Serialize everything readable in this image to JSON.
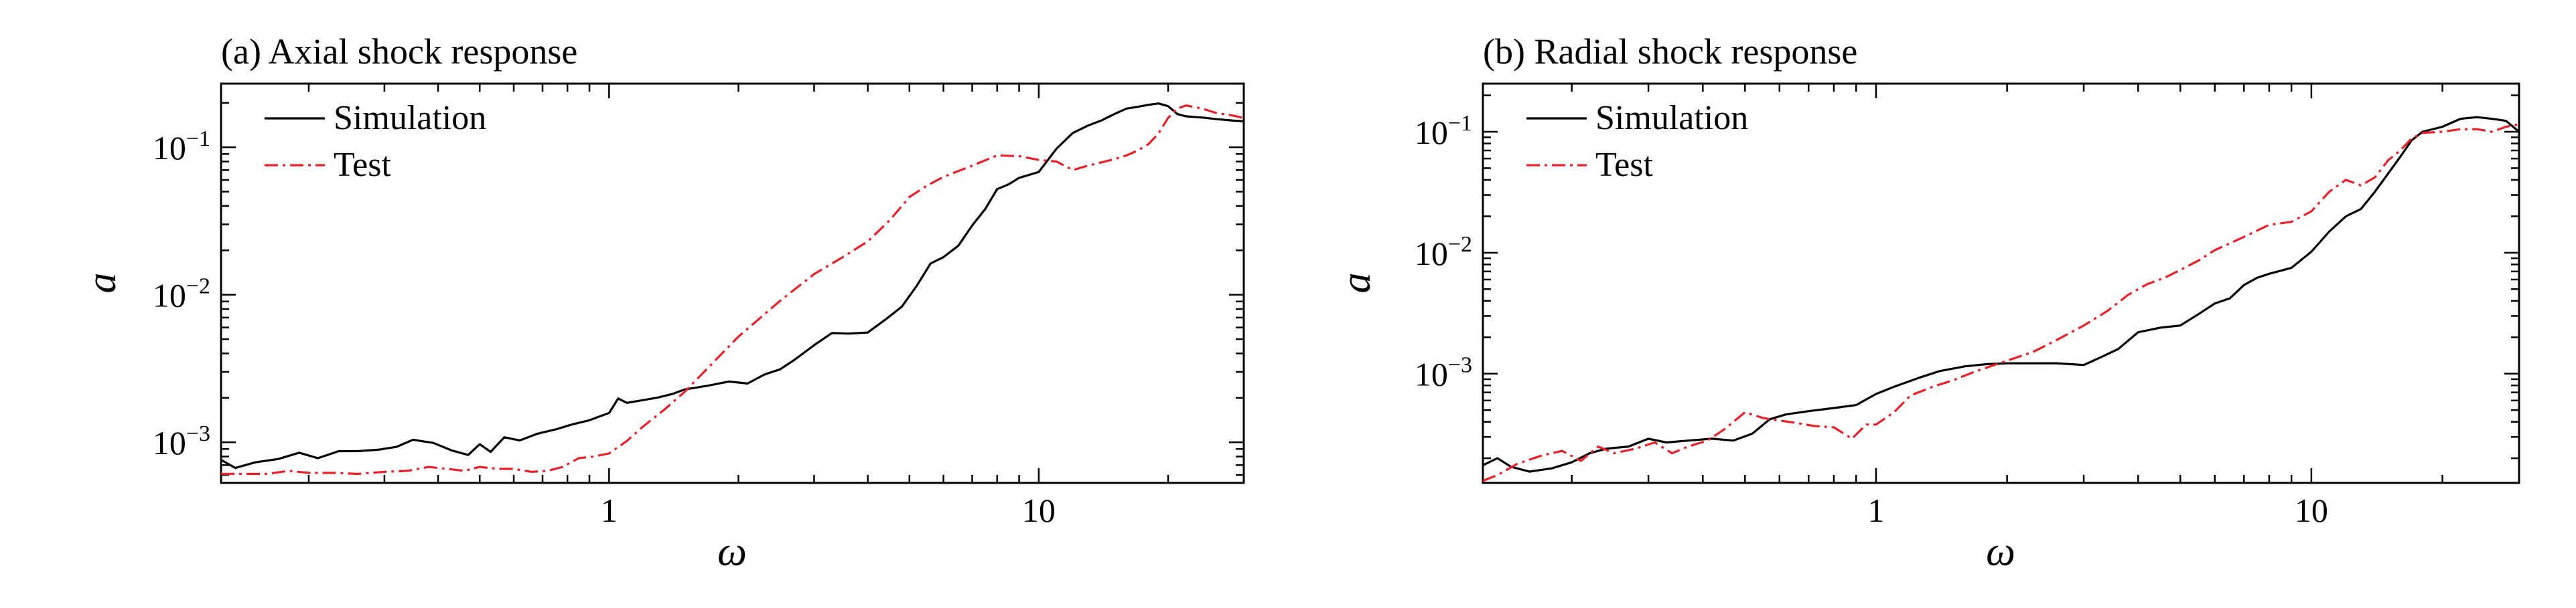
{
  "chart_data": [
    {
      "type": "line",
      "title": "(a) Axial shock response",
      "xlabel": "ω",
      "ylabel": "a",
      "xscale": "log",
      "yscale": "log",
      "xlim": [
        0.125,
        30
      ],
      "ylim": [
        0.00053,
        0.27
      ],
      "x_ticks": [
        {
          "value": 1,
          "label": "1"
        },
        {
          "value": 10,
          "label": "10"
        }
      ],
      "y_ticks": [
        {
          "value": 0.001,
          "base": "10",
          "exp": "−3"
        },
        {
          "value": 0.01,
          "base": "10",
          "exp": "−2"
        },
        {
          "value": 0.1,
          "base": "10",
          "exp": "−1"
        }
      ],
      "legend_position": "top-left",
      "series": [
        {
          "name": "Simulation",
          "color": "#000000",
          "dash": "solid",
          "x": [
            0.125,
            0.135,
            0.15,
            0.17,
            0.19,
            0.21,
            0.235,
            0.26,
            0.29,
            0.32,
            0.35,
            0.39,
            0.43,
            0.47,
            0.5,
            0.53,
            0.57,
            0.62,
            0.68,
            0.75,
            0.82,
            0.9,
            1.0,
            1.05,
            1.1,
            1.2,
            1.3,
            1.4,
            1.5,
            1.7,
            1.9,
            2.1,
            2.3,
            2.5,
            2.7,
            3.0,
            3.3,
            3.6,
            4.0,
            4.4,
            4.8,
            5.2,
            5.6,
            6.0,
            6.5,
            7.0,
            7.5,
            8.0,
            8.5,
            9.0,
            10,
            11,
            12,
            13,
            14,
            15,
            16,
            17,
            18,
            19,
            20,
            21,
            22,
            24,
            26,
            28,
            30
          ],
          "values": [
            0.00076,
            0.00067,
            0.00073,
            0.00077,
            0.00085,
            0.00078,
            0.00087,
            0.00087,
            0.00089,
            0.00093,
            0.00104,
            0.00099,
            0.00088,
            0.00082,
            0.00097,
            0.00086,
            0.00108,
            0.00103,
            0.00114,
            0.00122,
            0.00132,
            0.00141,
            0.00158,
            0.00198,
            0.00185,
            0.00193,
            0.00201,
            0.00212,
            0.00228,
            0.00242,
            0.00258,
            0.0025,
            0.00288,
            0.00312,
            0.00362,
            0.00455,
            0.0055,
            0.00545,
            0.00555,
            0.0068,
            0.0083,
            0.0115,
            0.0163,
            0.018,
            0.0215,
            0.0295,
            0.038,
            0.052,
            0.056,
            0.062,
            0.068,
            0.098,
            0.125,
            0.14,
            0.152,
            0.168,
            0.183,
            0.188,
            0.194,
            0.198,
            0.19,
            0.168,
            0.162,
            0.159,
            0.155,
            0.152,
            0.15
          ]
        },
        {
          "name": "Test",
          "color": "#e8202a",
          "dash": "dashdot",
          "x": [
            0.125,
            0.14,
            0.16,
            0.18,
            0.2,
            0.23,
            0.26,
            0.3,
            0.34,
            0.38,
            0.42,
            0.46,
            0.5,
            0.55,
            0.6,
            0.66,
            0.72,
            0.78,
            0.85,
            0.92,
            1.0,
            1.1,
            1.2,
            1.35,
            1.5,
            1.7,
            2.0,
            2.5,
            3.0,
            3.5,
            4.0,
            4.5,
            5.0,
            5.5,
            6.0,
            7.0,
            8.0,
            9.0,
            10,
            11,
            12,
            13,
            14,
            15,
            16,
            17,
            18,
            19,
            20,
            21,
            22,
            24,
            26,
            28,
            30
          ],
          "values": [
            0.00061,
            0.00061,
            0.00061,
            0.00064,
            0.00062,
            0.00062,
            0.00061,
            0.00063,
            0.00064,
            0.00068,
            0.00066,
            0.00064,
            0.00068,
            0.00066,
            0.00066,
            0.00063,
            0.00064,
            0.00068,
            0.00078,
            0.0008,
            0.00084,
            0.00102,
            0.00128,
            0.00168,
            0.0022,
            0.0032,
            0.0052,
            0.0091,
            0.0138,
            0.018,
            0.023,
            0.032,
            0.046,
            0.055,
            0.063,
            0.075,
            0.088,
            0.087,
            0.082,
            0.08,
            0.07,
            0.075,
            0.079,
            0.083,
            0.088,
            0.095,
            0.105,
            0.124,
            0.158,
            0.183,
            0.192,
            0.183,
            0.17,
            0.165,
            0.158
          ]
        }
      ]
    },
    {
      "type": "line",
      "title": "(b) Radial shock response",
      "xlabel": "ω",
      "ylabel": "a",
      "xscale": "log",
      "yscale": "log",
      "xlim": [
        0.125,
        30
      ],
      "ylim": [
        0.000125,
        0.25
      ],
      "x_ticks": [
        {
          "value": 1,
          "label": "1"
        },
        {
          "value": 10,
          "label": "10"
        }
      ],
      "y_ticks": [
        {
          "value": 0.001,
          "base": "10",
          "exp": "−3"
        },
        {
          "value": 0.01,
          "base": "10",
          "exp": "−2"
        },
        {
          "value": 0.1,
          "base": "10",
          "exp": "−1"
        }
      ],
      "legend_position": "top-left",
      "series": [
        {
          "name": "Simulation",
          "color": "#000000",
          "dash": "solid",
          "x": [
            0.125,
            0.135,
            0.145,
            0.16,
            0.18,
            0.2,
            0.22,
            0.24,
            0.27,
            0.3,
            0.33,
            0.37,
            0.42,
            0.47,
            0.52,
            0.57,
            0.62,
            0.7,
            0.8,
            0.9,
            1.0,
            1.1,
            1.25,
            1.4,
            1.6,
            1.8,
            2.0,
            2.3,
            2.6,
            3.0,
            3.3,
            3.6,
            4.0,
            4.5,
            5.0,
            5.5,
            6.0,
            6.5,
            7.0,
            7.5,
            8.0,
            9.0,
            10,
            11,
            12,
            13,
            14,
            15,
            16,
            17,
            18,
            20,
            22,
            24,
            26,
            28,
            30
          ],
          "values": [
            0.000175,
            0.0002,
            0.00017,
            0.000155,
            0.000165,
            0.000185,
            0.00022,
            0.00024,
            0.00025,
            0.00029,
            0.00027,
            0.00028,
            0.00029,
            0.00028,
            0.00032,
            0.00042,
            0.00046,
            0.00049,
            0.00052,
            0.00055,
            0.00068,
            0.00078,
            0.00092,
            0.00105,
            0.00115,
            0.0012,
            0.00122,
            0.00122,
            0.00122,
            0.00118,
            0.00138,
            0.0016,
            0.0022,
            0.0024,
            0.0025,
            0.0031,
            0.0038,
            0.0042,
            0.0054,
            0.0062,
            0.0067,
            0.0075,
            0.0102,
            0.015,
            0.02,
            0.023,
            0.032,
            0.045,
            0.062,
            0.085,
            0.1,
            0.11,
            0.128,
            0.132,
            0.128,
            0.123,
            0.1
          ]
        },
        {
          "name": "Test",
          "color": "#e8202a",
          "dash": "dashdot",
          "x": [
            0.125,
            0.135,
            0.15,
            0.17,
            0.19,
            0.21,
            0.23,
            0.25,
            0.28,
            0.31,
            0.34,
            0.37,
            0.41,
            0.45,
            0.5,
            0.55,
            0.6,
            0.66,
            0.72,
            0.8,
            0.88,
            0.95,
            1.0,
            1.1,
            1.2,
            1.35,
            1.5,
            1.7,
            2.0,
            2.3,
            2.6,
            3.0,
            3.4,
            3.8,
            4.2,
            4.6,
            5.0,
            5.5,
            6.0,
            7.0,
            8.0,
            9.0,
            10,
            11,
            12,
            13,
            14,
            15,
            16,
            17,
            18,
            20,
            22,
            24,
            26,
            28,
            30
          ],
          "values": [
            0.00013,
            0.000145,
            0.00018,
            0.00021,
            0.00023,
            0.00019,
            0.00025,
            0.00022,
            0.00024,
            0.00027,
            0.00022,
            0.00025,
            0.00028,
            0.00035,
            0.00048,
            0.00043,
            0.00041,
            0.00039,
            0.00037,
            0.00036,
            0.00029,
            0.00038,
            0.00038,
            0.00048,
            0.00066,
            0.00078,
            0.00088,
            0.00105,
            0.00128,
            0.00152,
            0.0019,
            0.0025,
            0.0033,
            0.0045,
            0.0055,
            0.0062,
            0.0072,
            0.0086,
            0.0105,
            0.0135,
            0.017,
            0.018,
            0.022,
            0.032,
            0.04,
            0.036,
            0.042,
            0.058,
            0.07,
            0.088,
            0.098,
            0.1,
            0.105,
            0.105,
            0.1,
            0.11,
            0.115
          ]
        }
      ]
    }
  ]
}
